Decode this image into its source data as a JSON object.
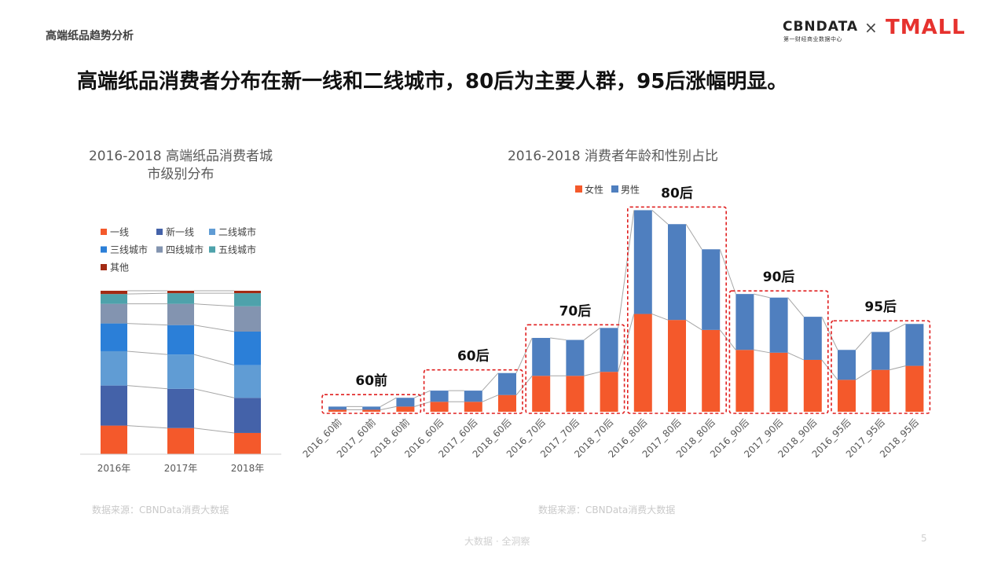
{
  "header": {
    "page_label": "高端纸品趋势分析",
    "brand_cbn": "CBNDATA",
    "brand_cbn_sub": "第一财经商业数据中心",
    "brand_x": "×",
    "brand_tmall": "TMALL"
  },
  "headline": "高端纸品消费者分布在新一线和二线城市，80后为主要人群，95后涨幅明显。",
  "colors": {
    "orange": "#f4592b",
    "blue": "#4f7fbf",
    "navy": "#4462a9",
    "light_blue": "#609cd4",
    "bright_blue": "#2b7fd8",
    "gray_blue": "#8394b0",
    "teal": "#4ea2ab",
    "dark_red": "#a32b14",
    "highlight_red": "#e02020"
  },
  "chart_data": [
    {
      "type": "bar",
      "stacked": true,
      "normalized": true,
      "title": "2016-2018 高端纸品消费者城市级别分布",
      "categories": [
        "2016年",
        "2017年",
        "2018年"
      ],
      "series": [
        {
          "name": "一线",
          "color": "#f4592b",
          "values": [
            17.5,
            16,
            13
          ]
        },
        {
          "name": "新一线",
          "color": "#4462a9",
          "values": [
            24.5,
            24,
            21.5
          ]
        },
        {
          "name": "二线城市",
          "color": "#609cd4",
          "values": [
            21,
            21,
            20
          ]
        },
        {
          "name": "三线城市",
          "color": "#2b7fd8",
          "values": [
            17,
            18,
            20.5
          ]
        },
        {
          "name": "四线城市",
          "color": "#8394b0",
          "values": [
            12,
            13,
            15.5
          ]
        },
        {
          "name": "五线城市",
          "color": "#4ea2ab",
          "values": [
            6,
            6.5,
            8
          ]
        },
        {
          "name": "其他",
          "color": "#a32b14",
          "values": [
            2,
            1.5,
            1.5
          ]
        }
      ],
      "legend_position": "top",
      "connector_lines": true,
      "ylim": [
        0,
        100
      ]
    },
    {
      "type": "bar",
      "stacked": true,
      "title": "2016-2018 消费者年龄和性别占比",
      "categories": [
        "2016_60前",
        "2017_60前",
        "2018_60前",
        "2016_60后",
        "2017_60后",
        "2018_60后",
        "2016_70后",
        "2017_70后",
        "2018_70后",
        "2016_80后",
        "2017_80后",
        "2018_80后",
        "2016_90后",
        "2017_90后",
        "2018_90后",
        "2016_95后",
        "2017_95后",
        "2018_95后"
      ],
      "series": [
        {
          "name": "女性",
          "color": "#f4592b",
          "values": [
            0.5,
            0.5,
            1.3,
            2.5,
            2.5,
            4.2,
            9.0,
            9.0,
            10.0,
            24.5,
            23.0,
            20.5,
            15.5,
            14.8,
            13.0,
            8.0,
            10.5,
            11.5
          ]
        },
        {
          "name": "男性",
          "color": "#4f7fbf",
          "values": [
            0.8,
            0.8,
            2.2,
            2.8,
            2.8,
            5.5,
            9.5,
            9.0,
            11.0,
            26.0,
            24.0,
            20.2,
            14.0,
            13.8,
            10.8,
            7.5,
            9.5,
            10.5
          ]
        }
      ],
      "group_labels": [
        "60前",
        "60后",
        "70后",
        "80后",
        "90后",
        "95后"
      ],
      "legend_position": "top",
      "connector_lines": true
    }
  ],
  "sources": {
    "left": "数据来源：CBNData消费大数据",
    "right": "数据来源：CBNData消费大数据"
  },
  "footer": {
    "tagline": "大数据 · 全洞察",
    "page_number": "5"
  }
}
